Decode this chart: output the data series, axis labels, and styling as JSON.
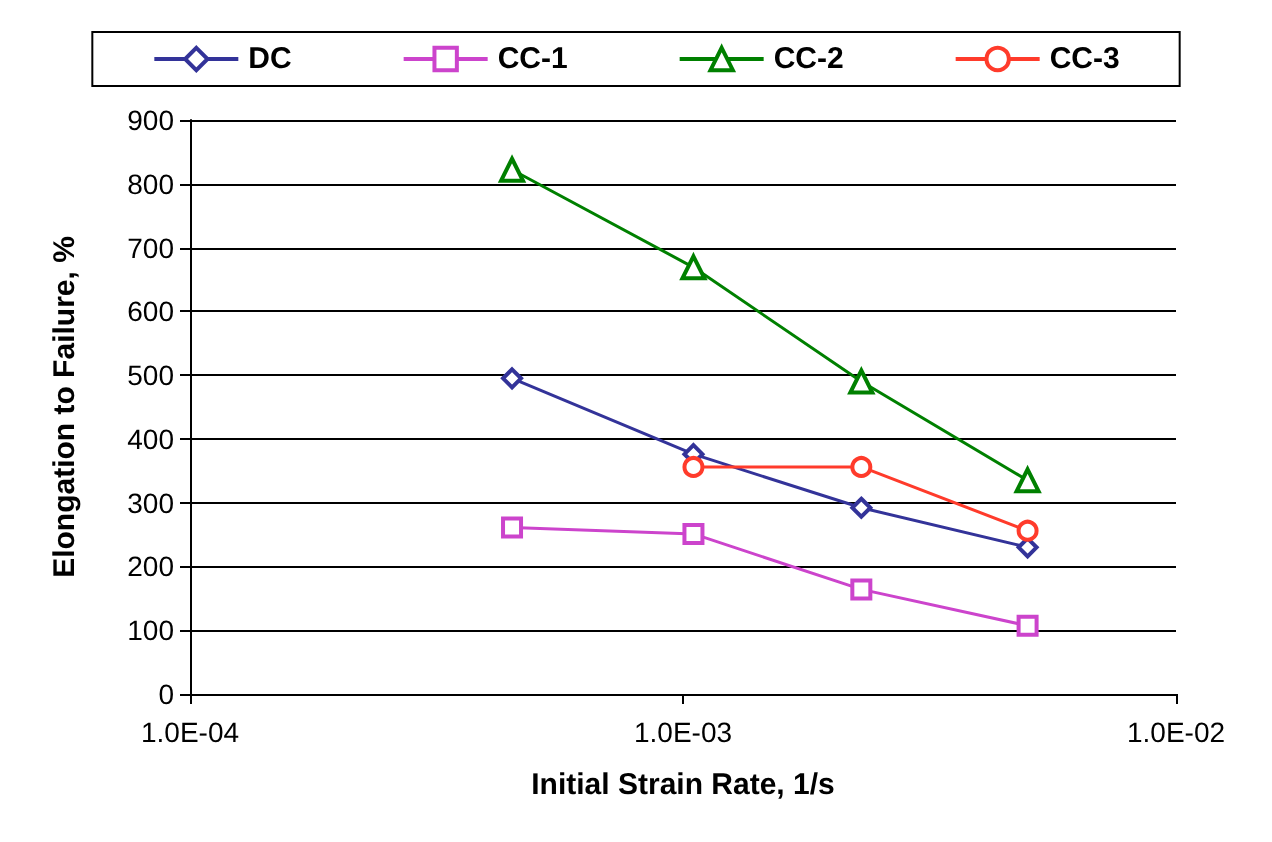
{
  "chart_data": {
    "type": "line",
    "xlabel": "Initial Strain Rate, 1/s",
    "ylabel": "Elongation to Failure, %",
    "log": "x",
    "grid": "y",
    "legend": "top",
    "xlim": [
      0.0001,
      0.01
    ],
    "xticks": [
      {
        "value": 0.0001,
        "label": "1.0E-04"
      },
      {
        "value": 0.001,
        "label": "1.0E-03"
      },
      {
        "value": 0.01,
        "label": "1.0E-02"
      }
    ],
    "ylim": [
      0,
      900
    ],
    "yticks": [
      0,
      100,
      200,
      300,
      400,
      500,
      600,
      700,
      800,
      900
    ],
    "x": [
      0.00045,
      0.00105,
      0.0023,
      0.005
    ],
    "series": [
      {
        "name": "DC",
        "color": "#333399",
        "marker": "diamond",
        "values": [
          495,
          376,
          292,
          230
        ]
      },
      {
        "name": "CC-1",
        "color": "#cc44cc",
        "marker": "square",
        "values": [
          261,
          251,
          164,
          107
        ]
      },
      {
        "name": "CC-2",
        "color": "#008000",
        "marker": "triangle",
        "values": [
          822,
          669,
          490,
          335
        ]
      },
      {
        "name": "CC-3",
        "color": "#ff3b2b",
        "marker": "circle",
        "values": [
          null,
          356,
          356,
          256
        ]
      }
    ]
  }
}
